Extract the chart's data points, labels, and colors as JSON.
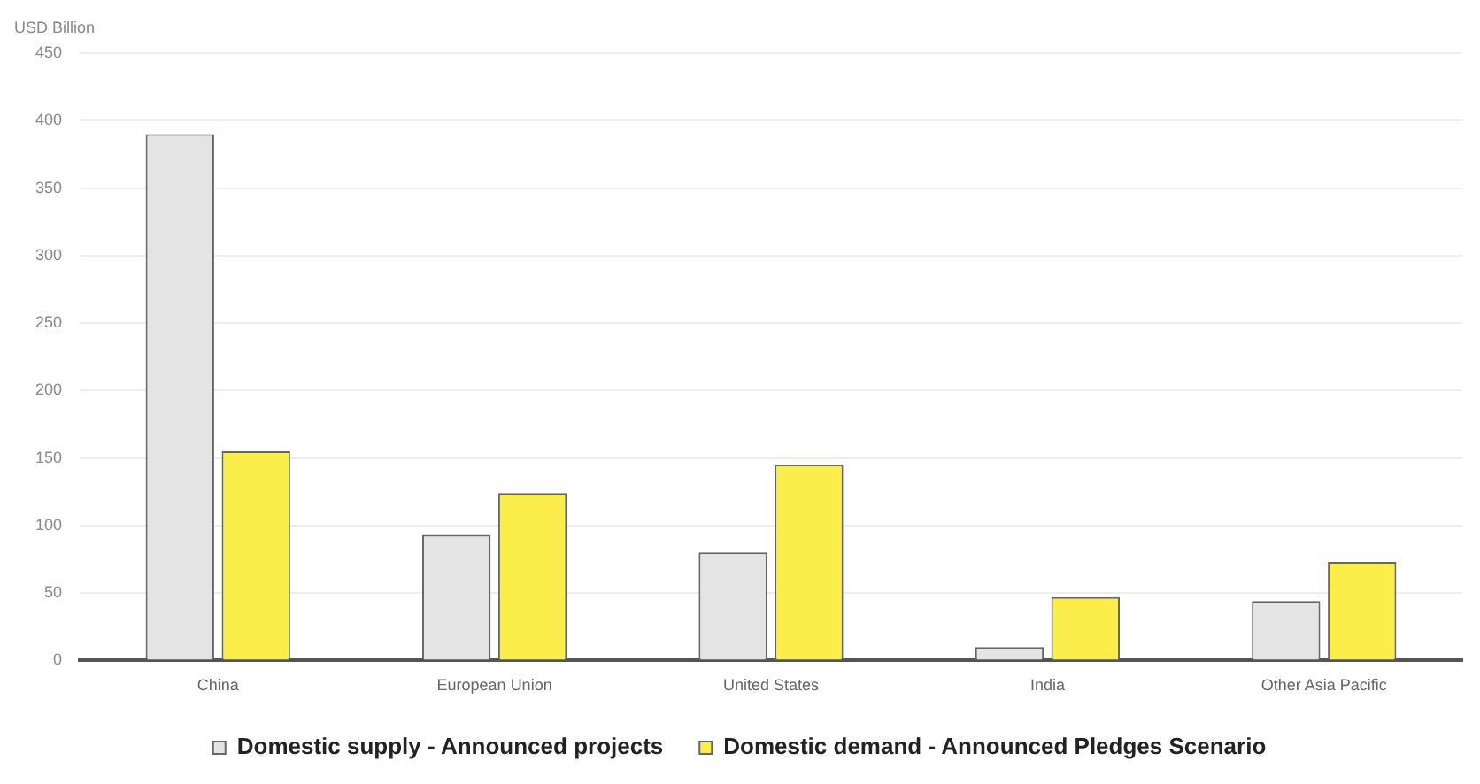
{
  "chart_data": {
    "type": "bar",
    "ylabel": "USD Billion",
    "categories": [
      "China",
      "European Union",
      "United States",
      "India",
      "Other Asia Pacific"
    ],
    "series": [
      {
        "name": "Domestic supply - Announced projects",
        "color": "#e4e4e4",
        "values": [
          390,
          93,
          80,
          10,
          44
        ]
      },
      {
        "name": "Domestic demand - Announced Pledges Scenario",
        "color": "#fcee4a",
        "values": [
          155,
          124,
          145,
          47,
          73
        ]
      }
    ],
    "ylim": [
      0,
      450
    ],
    "yticks": [
      0,
      50,
      100,
      150,
      200,
      250,
      300,
      350,
      400,
      450
    ],
    "grid": "y",
    "legend": "bottom"
  }
}
